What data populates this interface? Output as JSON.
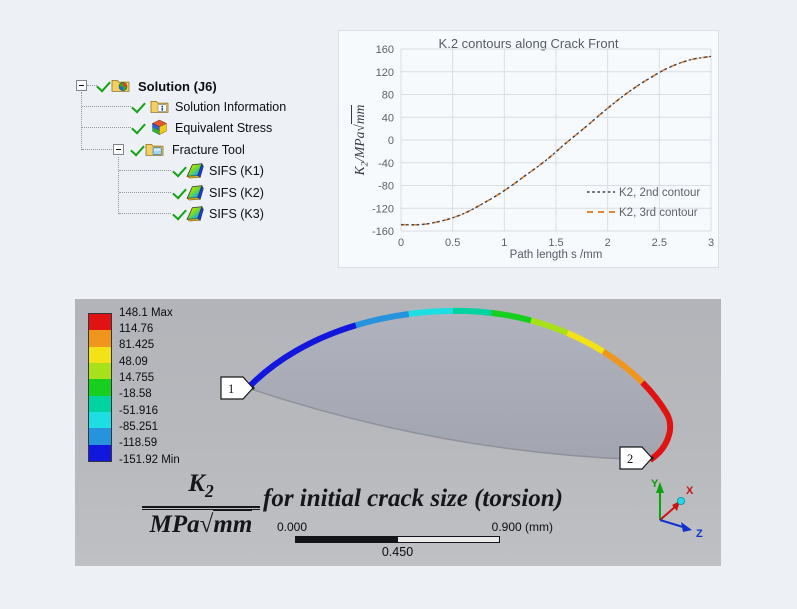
{
  "tree": {
    "items": [
      {
        "label": "Solution (J6)"
      },
      {
        "label": "Solution Information"
      },
      {
        "label": "Equivalent Stress"
      },
      {
        "label": "Fracture Tool"
      },
      {
        "label": "SIFS (K1)"
      },
      {
        "label": "SIFS (K2)"
      },
      {
        "label": "SIFS (K3)"
      }
    ]
  },
  "chart_data": {
    "type": "line",
    "title": "K.2 contours along Crack Front",
    "xlabel": "Path length s /mm",
    "ylabel": "K2/MPa√mm",
    "ylabel_parts": {
      "k": "K",
      "sub": "2",
      "mid": "/MPa",
      "radical": "√",
      "arg": "mm"
    },
    "xlim": [
      0,
      3
    ],
    "ylim": [
      -160,
      160
    ],
    "xtick_values": [
      0,
      0.5,
      1,
      1.5,
      2,
      2.5,
      3
    ],
    "xtick_labels": [
      "0",
      "0.5",
      "1",
      "1.5",
      "2",
      "2.5",
      "3"
    ],
    "ytick_values": [
      160,
      120,
      80,
      40,
      0,
      -40,
      -80,
      -120,
      -160
    ],
    "grid": true,
    "legend_position": "inside-right",
    "x": [
      0,
      0.2,
      0.4,
      0.6,
      0.8,
      1.0,
      1.2,
      1.4,
      1.6,
      1.8,
      2.0,
      2.2,
      2.4,
      2.6,
      2.8,
      3.0
    ],
    "series": [
      {
        "name": "K2, 2nd contour",
        "color": "#3b4152",
        "dash": "2.6 2.6",
        "width": 1.3,
        "values": [
          -149,
          -148.5,
          -142,
          -130,
          -111,
          -89,
          -63,
          -36,
          -5,
          25,
          56,
          84,
          108,
          128,
          141,
          147
        ]
      },
      {
        "name": "K2, 3rd contour",
        "color": "#e2873a",
        "dash": "6 5",
        "width": 1.7,
        "values": [
          -149,
          -148.5,
          -142,
          -130,
          -111,
          -89,
          -63,
          -36,
          -5,
          25,
          56,
          84,
          108,
          128,
          141,
          147
        ]
      }
    ]
  },
  "viewport": {
    "legend": {
      "values": [
        "148.1 Max",
        "114.76",
        "81.425",
        "48.09",
        "14.755",
        "-18.58",
        "-51.916",
        "-85.251",
        "-118.59",
        "-151.92 Min"
      ],
      "band_colors": [
        "#e11212",
        "#f0961c",
        "#f2e216",
        "#a8e01a",
        "#17cf1e",
        "#00d2a0",
        "#1ddfe3",
        "#2693dd",
        "#1217dd"
      ]
    },
    "crack_front": {
      "segments": [
        {
          "color": "#1217dd",
          "from": 0.0,
          "to": 0.24
        },
        {
          "color": "#2693dd",
          "from": 0.24,
          "to": 0.343
        },
        {
          "color": "#1ddfe3",
          "from": 0.343,
          "to": 0.427
        },
        {
          "color": "#00d2a0",
          "from": 0.427,
          "to": 0.5
        },
        {
          "color": "#17cf1e",
          "from": 0.5,
          "to": 0.577
        },
        {
          "color": "#a8e01a",
          "from": 0.577,
          "to": 0.65
        },
        {
          "color": "#f2e216",
          "from": 0.65,
          "to": 0.727
        },
        {
          "color": "#f0961c",
          "from": 0.727,
          "to": 0.822
        },
        {
          "color": "#e11212",
          "from": 0.822,
          "to": 1.0
        }
      ]
    },
    "tags": [
      {
        "label": "1"
      },
      {
        "label": "2"
      }
    ],
    "formula": {
      "k": "K",
      "sub": "2",
      "den": "MPa",
      "radical": "√",
      "arg": "mm",
      "phrase": "for initial crack size (torsion)"
    },
    "scale_bar": {
      "left": "0.000",
      "mid": "0.450",
      "right": "0.900 (mm)"
    },
    "triad": {
      "x": "X",
      "y": "Y",
      "z": "Z",
      "x_color": "#cc1111",
      "y_color": "#0b9b0b",
      "z_color": "#1133cc"
    }
  }
}
